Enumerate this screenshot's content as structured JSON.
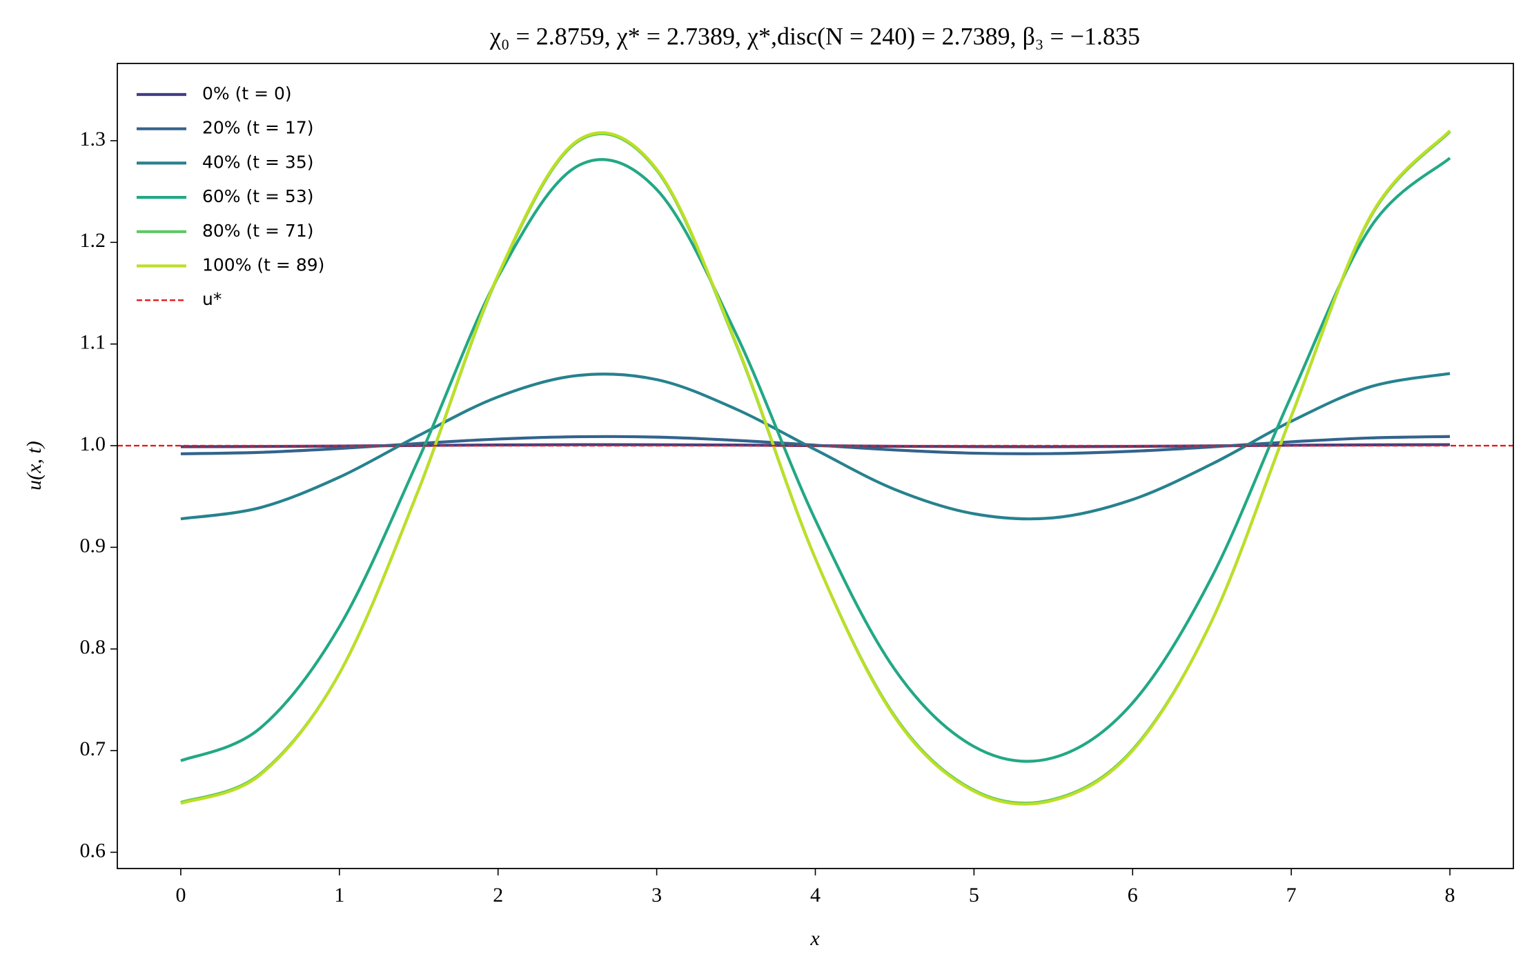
{
  "chart_data": {
    "type": "line",
    "title": "χ₀ = 2.8759,  χ* = 2.7389,  χ*,disc(N = 240) = 2.7389,  β₃ = −1.835",
    "xlabel": "x",
    "ylabel": "u(x, t)",
    "x": [
      0,
      0.5,
      1,
      1.5,
      2,
      2.5,
      3,
      3.5,
      4,
      4.5,
      5,
      5.5,
      6,
      6.5,
      7,
      7.5,
      8
    ],
    "series": [
      {
        "name": "0% (t = 0)",
        "color": "#433e85",
        "values": [
          0.999,
          0.9992,
          0.9996,
          1.0002,
          1.0007,
          1.001,
          1.0009,
          1.0006,
          1.0,
          0.9994,
          0.9991,
          0.999,
          0.9993,
          0.9998,
          1.0004,
          1.0008,
          1.001
        ]
      },
      {
        "name": "20% (t = 17)",
        "color": "#33638d",
        "values": [
          0.992,
          0.9934,
          0.9972,
          1.0022,
          1.0065,
          1.0088,
          1.0084,
          1.0052,
          1.0005,
          0.9958,
          0.9926,
          0.9922,
          0.9945,
          0.9988,
          1.0038,
          1.0076,
          1.009
        ]
      },
      {
        "name": "40% (t = 35)",
        "color": "#26828e",
        "values": [
          0.928,
          0.939,
          0.969,
          1.01,
          1.048,
          1.069,
          1.065,
          1.036,
          0.996,
          0.957,
          0.933,
          0.929,
          0.947,
          0.982,
          1.024,
          1.058,
          1.071
        ]
      },
      {
        "name": "60% (t = 53)",
        "color": "#22a884",
        "values": [
          0.69,
          0.722,
          0.822,
          0.987,
          1.166,
          1.275,
          1.252,
          1.11,
          0.927,
          0.78,
          0.704,
          0.693,
          0.747,
          0.871,
          1.049,
          1.215,
          1.283
        ]
      },
      {
        "name": "80% (t = 71)",
        "color": "#5ec962",
        "values": [
          0.649,
          0.677,
          0.776,
          0.957,
          1.167,
          1.299,
          1.271,
          1.1,
          0.889,
          0.734,
          0.661,
          0.652,
          0.701,
          0.828,
          1.029,
          1.225,
          1.309
        ]
      },
      {
        "name": "100% (t = 89)",
        "color": "#bddf26",
        "values": [
          0.648,
          0.676,
          0.776,
          0.957,
          1.168,
          1.3,
          1.272,
          1.101,
          0.889,
          0.733,
          0.66,
          0.651,
          0.7,
          0.828,
          1.029,
          1.226,
          1.31
        ]
      }
    ],
    "hline": {
      "name": "u*",
      "value": 1.0,
      "color": "#e41a1c",
      "dashed": true
    },
    "xlim": [
      -0.4,
      8.4
    ],
    "xticks": [
      0,
      1,
      2,
      3,
      4,
      5,
      6,
      7,
      8
    ],
    "ylim": [
      0.584,
      1.376
    ],
    "yticks": [
      0.6,
      0.7,
      0.8,
      0.9,
      {
        "value": 1.0,
        "label": "1.0"
      },
      1.1,
      1.2,
      1.3
    ],
    "legend": "upper left",
    "grid": false
  }
}
